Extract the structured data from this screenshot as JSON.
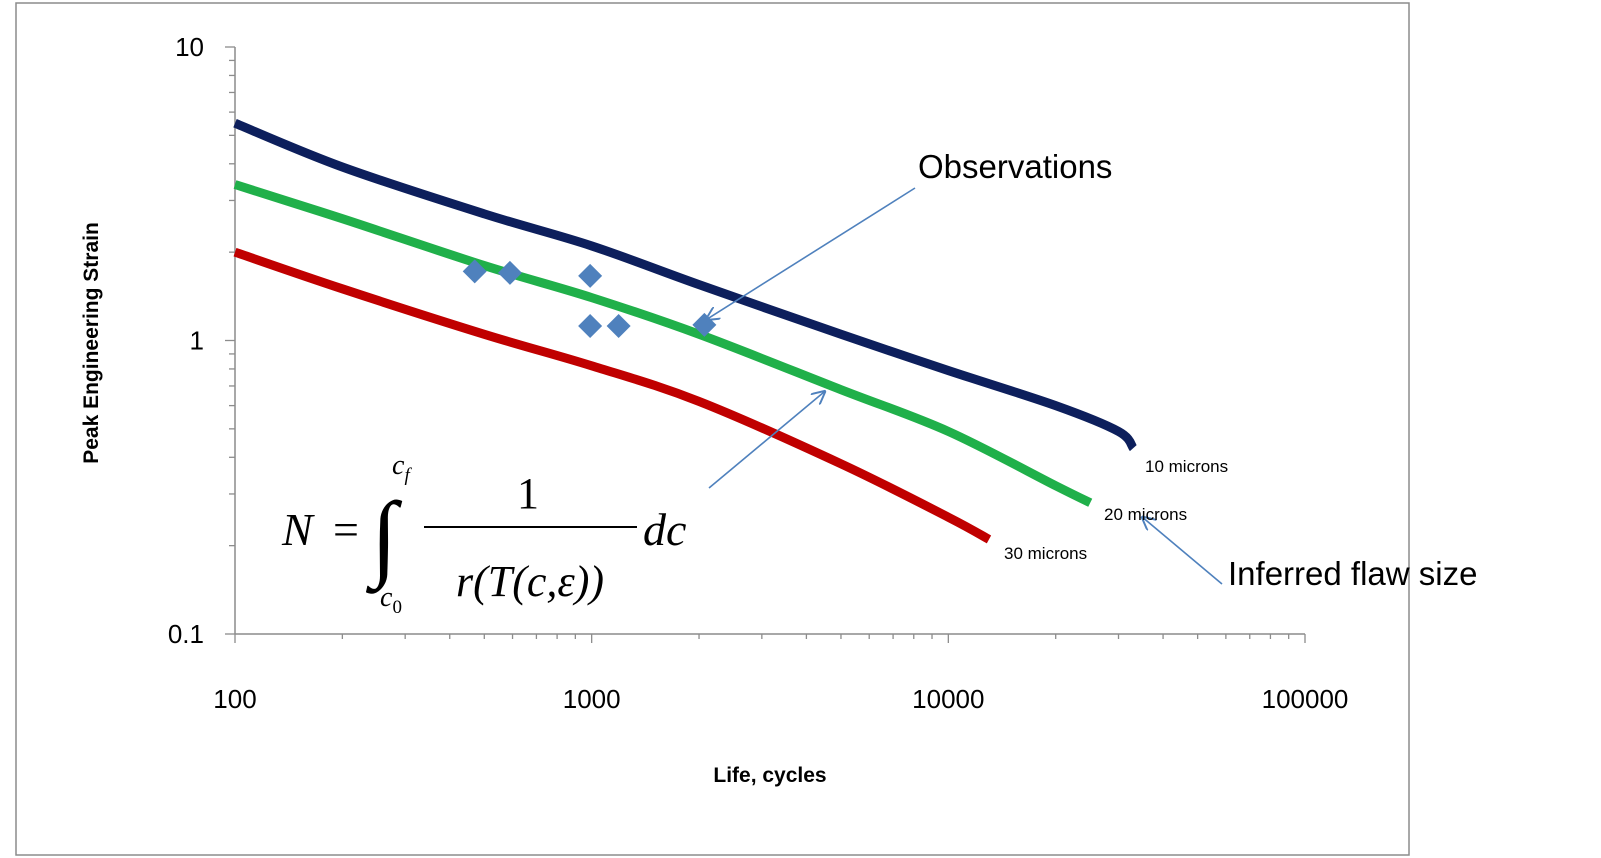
{
  "chart_data": {
    "type": "line",
    "title": "",
    "xlabel": "Life, cycles",
    "ylabel": "Peak Engineering Strain",
    "xscale": "log",
    "yscale": "log",
    "xlim": [
      100,
      100000
    ],
    "ylim": [
      0.1,
      10
    ],
    "xticks": [
      {
        "value": 100,
        "label": "100"
      },
      {
        "value": 1000,
        "label": "1000"
      },
      {
        "value": 10000,
        "label": "10000"
      },
      {
        "value": 100000,
        "label": "100000"
      }
    ],
    "yticks": [
      {
        "value": 0.1,
        "label": "0.1"
      },
      {
        "value": 1,
        "label": "1"
      },
      {
        "value": 10,
        "label": "10"
      }
    ],
    "grid": false,
    "legend": "none",
    "series": [
      {
        "name": "10 microns",
        "color": "#0d1f5c",
        "points": [
          [
            100,
            5.5
          ],
          [
            200,
            3.9
          ],
          [
            500,
            2.7
          ],
          [
            1000,
            2.1
          ],
          [
            2000,
            1.55
          ],
          [
            5000,
            1.05
          ],
          [
            10000,
            0.79
          ],
          [
            20000,
            0.6
          ],
          [
            30000,
            0.49
          ],
          [
            33000,
            0.43
          ]
        ]
      },
      {
        "name": "20 microns",
        "color": "#20b04a",
        "points": [
          [
            100,
            3.4
          ],
          [
            200,
            2.6
          ],
          [
            500,
            1.8
          ],
          [
            1000,
            1.4
          ],
          [
            2000,
            1.05
          ],
          [
            5000,
            0.68
          ],
          [
            10000,
            0.49
          ],
          [
            20000,
            0.32
          ],
          [
            25000,
            0.28
          ]
        ]
      },
      {
        "name": "30 microns",
        "color": "#c00000",
        "points": [
          [
            100,
            2.0
          ],
          [
            200,
            1.5
          ],
          [
            500,
            1.05
          ],
          [
            1000,
            0.82
          ],
          [
            2000,
            0.62
          ],
          [
            5000,
            0.38
          ],
          [
            10000,
            0.25
          ],
          [
            13000,
            0.21
          ]
        ]
      },
      {
        "name": "Observations",
        "type": "scatter",
        "color": "#4f81bd",
        "points": [
          [
            470,
            1.72
          ],
          [
            590,
            1.7
          ],
          [
            990,
            1.66
          ],
          [
            990,
            1.12
          ],
          [
            1190,
            1.12
          ],
          [
            2070,
            1.13
          ]
        ]
      }
    ],
    "annotations": [
      {
        "text": "Observations",
        "arrow_to": [
          2100,
          1.18
        ]
      },
      {
        "text": "Inferred flaw size",
        "arrow_to": [
          35000,
          0.25
        ]
      }
    ]
  },
  "equation": {
    "lhs": "N",
    "equals": "=",
    "upper_limit_base": "c",
    "upper_limit_sub": "f",
    "lower_limit_base": "c",
    "lower_limit_sub": "0",
    "numerator": "1",
    "denominator": "r(T(c,ε))",
    "differential": "dc",
    "arrow_to": [
      4500,
      0.67
    ]
  }
}
